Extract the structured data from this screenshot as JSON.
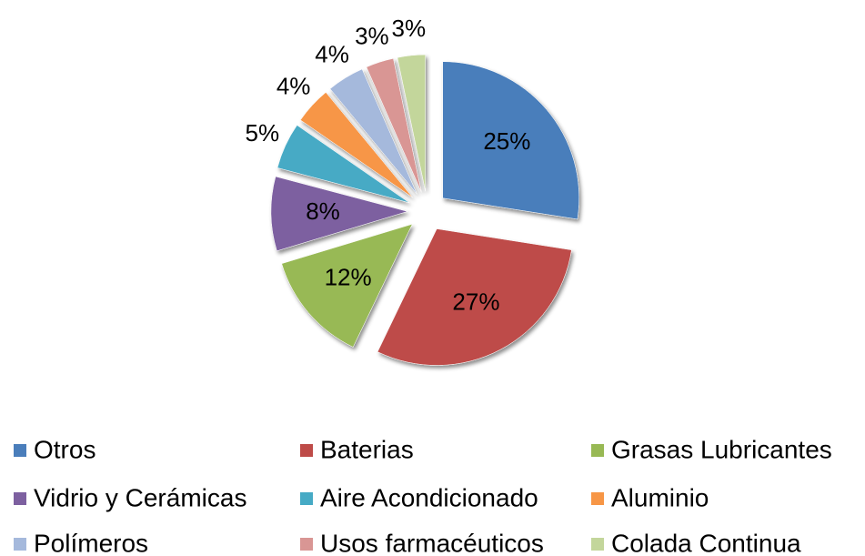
{
  "chart_data": {
    "type": "pie",
    "categories": [
      "Otros",
      "Baterias",
      "Grasas Lubricantes",
      "Vidrio y Cerámicas",
      "Aire Acondicionado",
      "Aluminio",
      "Polímeros",
      "Usos farmacéuticos",
      "Colada Continua"
    ],
    "values": [
      25,
      27,
      12,
      8,
      5,
      4,
      4,
      3,
      3
    ],
    "value_labels": [
      "25%",
      "27%",
      "12%",
      "8%",
      "5%",
      "4%",
      "4%",
      "3%",
      "3%"
    ],
    "colors": [
      "#4a7ebb",
      "#be4b48",
      "#98b954",
      "#7d60a0",
      "#46aac5",
      "#f79646",
      "#a5b9dc",
      "#d99694",
      "#c3d69b"
    ],
    "legend": "bottom"
  }
}
